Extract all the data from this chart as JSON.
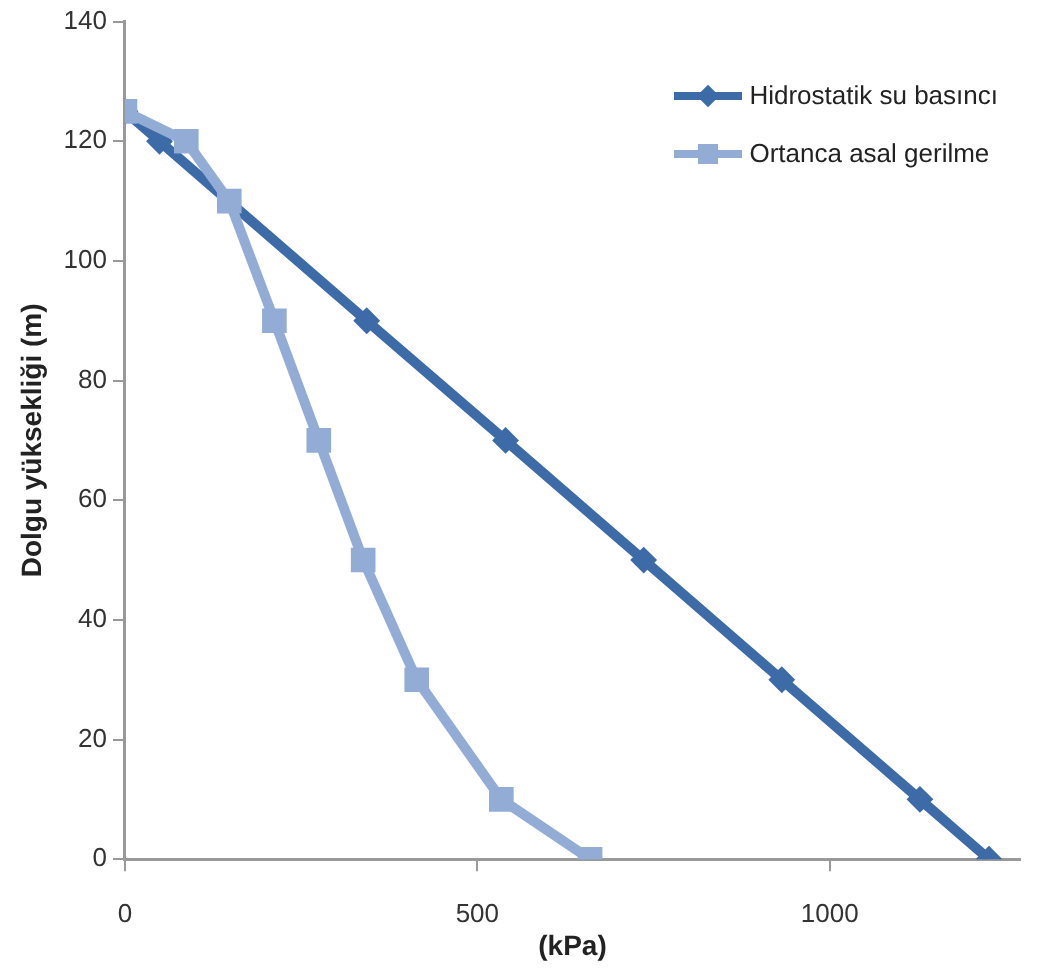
{
  "chart_data": {
    "type": "line",
    "xlabel": "(kPa)",
    "ylabel": "Dolgu yüksekliği (m)",
    "series": [
      {
        "name": "Hidrostatik su basıncı",
        "color": "#3d6ba8",
        "marker": "diamond",
        "x": [
          0,
          49,
          343,
          540,
          736,
          932,
          1128,
          1226
        ],
        "values": [
          125,
          120,
          90,
          70,
          50,
          30,
          10,
          0
        ]
      },
      {
        "name": "Ortanca asal gerilme",
        "color": "#93acd6",
        "marker": "square",
        "x": [
          0,
          87,
          148,
          212,
          275,
          338,
          414,
          534,
          660
        ],
        "values": [
          125,
          120,
          110,
          90,
          70,
          50,
          30,
          10,
          0
        ]
      }
    ],
    "xlim": [
      0,
      1270
    ],
    "xticks": [
      0,
      500,
      1000
    ],
    "ylim": [
      0,
      140
    ],
    "yticks": [
      0,
      20,
      40,
      60,
      80,
      100,
      120,
      140
    ],
    "grid": false,
    "legend": "top right"
  }
}
